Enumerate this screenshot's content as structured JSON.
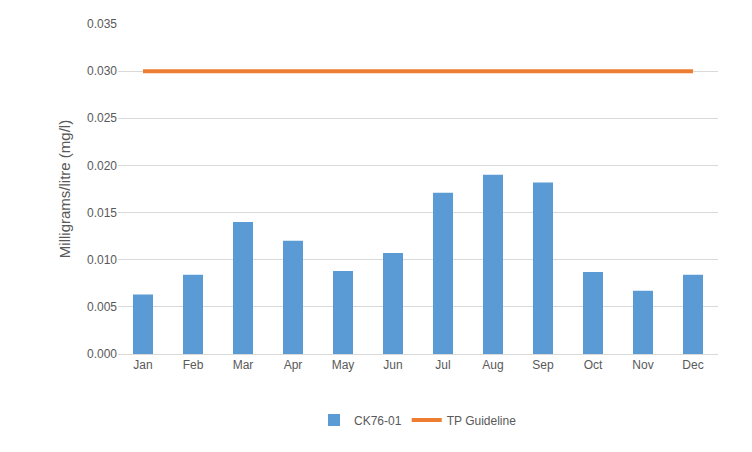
{
  "chart_data": {
    "type": "bar",
    "y_label": "Milligrams/litre (mg/l)",
    "categories": [
      "Jan",
      "Feb",
      "Mar",
      "Apr",
      "May",
      "Jun",
      "Jul",
      "Aug",
      "Sep",
      "Oct",
      "Nov",
      "Dec"
    ],
    "series": [
      {
        "name": "CK76-01",
        "type": "bar",
        "color": "#5b9bd5",
        "values": [
          0.0063,
          0.0084,
          0.014,
          0.012,
          0.0088,
          0.0107,
          0.0171,
          0.019,
          0.0182,
          0.0087,
          0.0067,
          0.0084
        ]
      },
      {
        "name": "TP Guideline",
        "type": "line",
        "color": "#ed7d31",
        "values": [
          0.03,
          0.03,
          0.03,
          0.03,
          0.03,
          0.03,
          0.03,
          0.03,
          0.03,
          0.03,
          0.03,
          0.03
        ]
      }
    ],
    "ylim": [
      0,
      0.035
    ],
    "yticks": [
      {
        "value": 0,
        "label": "0.000"
      },
      {
        "value": 0.005,
        "label": "0.005"
      },
      {
        "value": 0.01,
        "label": "0.010"
      },
      {
        "value": 0.015,
        "label": "0.015"
      },
      {
        "value": 0.02,
        "label": "0.020"
      },
      {
        "value": 0.025,
        "label": "0.025"
      },
      {
        "value": 0.03,
        "label": "0.030"
      },
      {
        "value": 0.035,
        "label": "0.035"
      }
    ],
    "grid": true,
    "legend": "bottom"
  }
}
